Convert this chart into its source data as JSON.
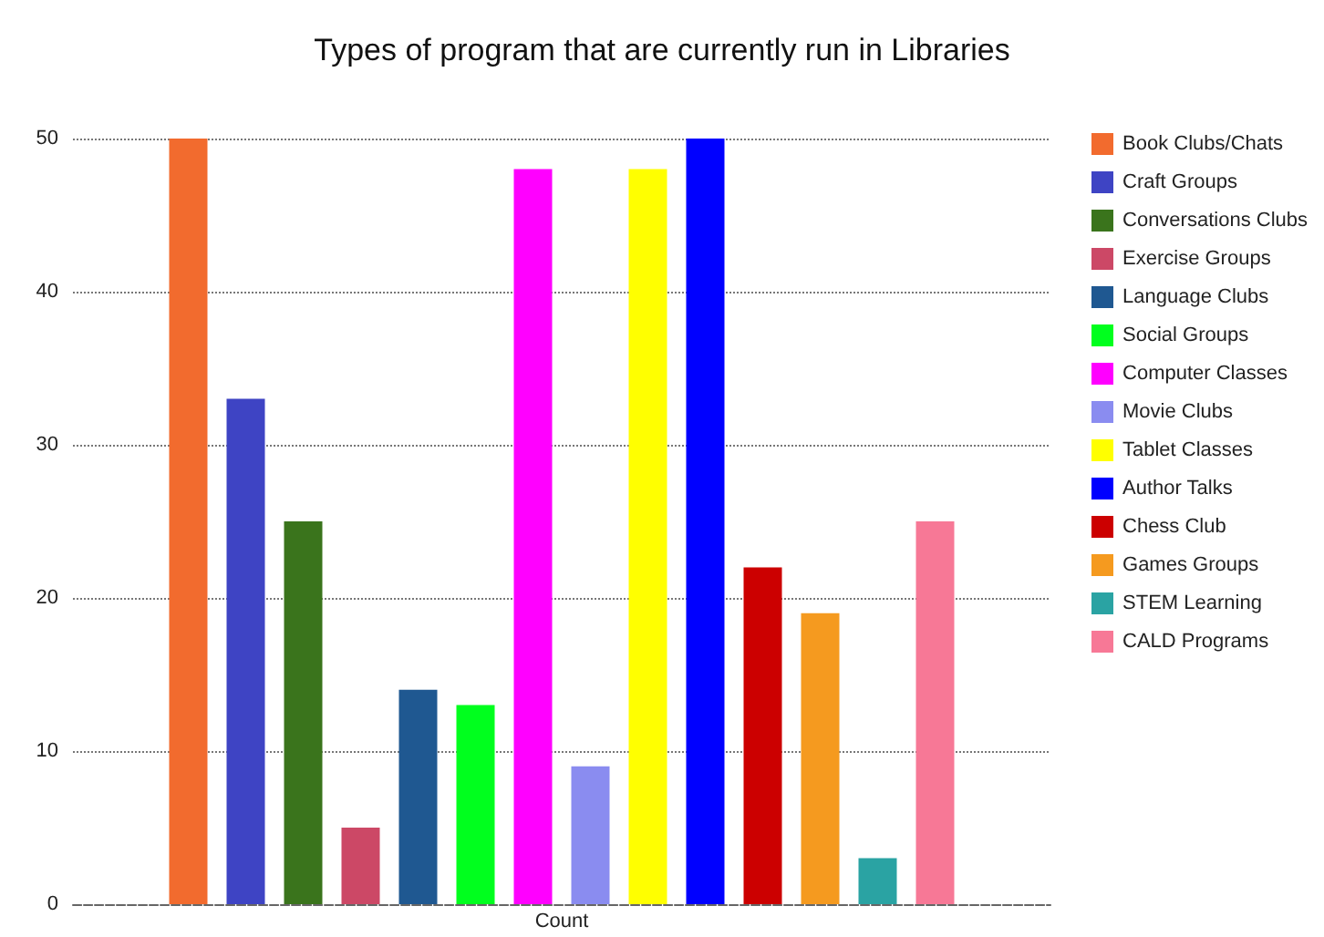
{
  "chart_data": {
    "type": "bar",
    "title": "Types of program that are currently run in Libraries",
    "categories": [
      "Count"
    ],
    "series": [
      {
        "name": "Book Clubs/Chats",
        "color": "#f26b2e",
        "values": [
          50
        ]
      },
      {
        "name": "Craft Groups",
        "color": "#3e44c4",
        "values": [
          33
        ]
      },
      {
        "name": "Conversations Clubs",
        "color": "#3a741c",
        "values": [
          25
        ]
      },
      {
        "name": "Exercise Groups",
        "color": "#cc4866",
        "values": [
          5
        ]
      },
      {
        "name": "Language Clubs",
        "color": "#1f5891",
        "values": [
          14
        ]
      },
      {
        "name": "Social Groups",
        "color": "#00ff1e",
        "values": [
          13
        ]
      },
      {
        "name": "Computer Classes",
        "color": "#ff00ff",
        "values": [
          48
        ]
      },
      {
        "name": "Movie Clubs",
        "color": "#8a8cf0",
        "values": [
          9
        ]
      },
      {
        "name": "Tablet Classes",
        "color": "#ffff00",
        "values": [
          48
        ]
      },
      {
        "name": "Author Talks",
        "color": "#0000ff",
        "values": [
          50
        ]
      },
      {
        "name": "Chess Club",
        "color": "#cc0000",
        "values": [
          22
        ]
      },
      {
        "name": "Games Groups",
        "color": "#f59a1f",
        "values": [
          19
        ]
      },
      {
        "name": "STEM Learning",
        "color": "#2aa3a3",
        "values": [
          3
        ]
      },
      {
        "name": "CALD Programs",
        "color": "#f77896",
        "values": [
          25
        ]
      }
    ],
    "ylim": [
      0,
      50
    ],
    "yticks": [
      0,
      10,
      20,
      30,
      40,
      50
    ],
    "grid": "y",
    "legend": "right"
  }
}
